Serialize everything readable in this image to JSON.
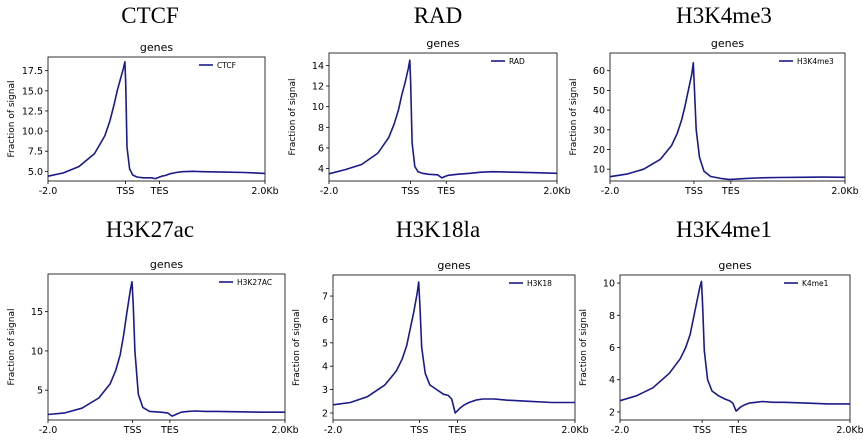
{
  "figure": {
    "line_color": "#1a1a8c",
    "axis_color": "#000000",
    "legend_line_color": "#1a1a8c"
  },
  "chart_data": [
    {
      "type": "line",
      "panel_title": "CTCF",
      "title": "genes",
      "ylabel": "Fraction of signal",
      "xlabel": "",
      "xtick_labels": [
        "-2.0",
        "TSS",
        "TES",
        "2.0Kb"
      ],
      "ytick_labels": [
        "5.0",
        "7.5",
        "10.0",
        "12.5",
        "15.0",
        "17.5"
      ],
      "yticks": [
        5,
        7.5,
        10,
        12.5,
        15,
        17.5
      ],
      "ylim": [
        3.8,
        19.2
      ],
      "legend": "CTCF",
      "legend_position": "top-right",
      "x": [
        0,
        15,
        30,
        45,
        55,
        60,
        64,
        67,
        70,
        73,
        74.4,
        75.2,
        76.5,
        79,
        82,
        86,
        92,
        100,
        104,
        107,
        110,
        114,
        118,
        124,
        130,
        140,
        150,
        170,
        190,
        210
      ],
      "y": [
        4.4,
        4.8,
        5.6,
        7.2,
        9.4,
        11.3,
        13.3,
        15.0,
        16.4,
        17.8,
        18.6,
        16.0,
        8.0,
        5.3,
        4.55,
        4.3,
        4.2,
        4.2,
        4.1,
        4.25,
        4.4,
        4.5,
        4.7,
        4.85,
        4.95,
        5.0,
        4.95,
        4.9,
        4.85,
        4.75
      ]
    },
    {
      "type": "line",
      "panel_title": "RAD",
      "title": "genes",
      "ylabel": "Fraction of signal",
      "xlabel": "",
      "xtick_labels": [
        "-2.0",
        "TSS",
        "TES",
        "2.0Kb"
      ],
      "ytick_labels": [
        "4",
        "6",
        "8",
        "10",
        "12",
        "14"
      ],
      "yticks": [
        4,
        6,
        8,
        10,
        12,
        14
      ],
      "ylim": [
        2.8,
        15.2
      ],
      "legend": "RAD",
      "legend_position": "top-right",
      "x": [
        0,
        15,
        30,
        45,
        55,
        60,
        64,
        67,
        70,
        73,
        74.4,
        75.2,
        76.5,
        79,
        82,
        86,
        92,
        100,
        104,
        107,
        110,
        114,
        118,
        124,
        130,
        140,
        150,
        170,
        190,
        210
      ],
      "y": [
        3.5,
        3.9,
        4.4,
        5.5,
        7.0,
        8.3,
        9.7,
        11.1,
        12.3,
        13.7,
        14.5,
        12.5,
        6.5,
        4.2,
        3.7,
        3.55,
        3.45,
        3.4,
        3.1,
        3.25,
        3.35,
        3.4,
        3.45,
        3.5,
        3.55,
        3.65,
        3.7,
        3.65,
        3.6,
        3.55
      ]
    },
    {
      "type": "line",
      "panel_title": "H3K4me3",
      "title": "genes",
      "ylabel": "Fraction of signal",
      "xlabel": "",
      "xtick_labels": [
        "-2.0",
        "TSS",
        "TES",
        "2.0Kb"
      ],
      "ytick_labels": [
        "10",
        "20",
        "30",
        "40",
        "50",
        "60"
      ],
      "yticks": [
        10,
        20,
        30,
        40,
        50,
        60
      ],
      "ylim": [
        4,
        69
      ],
      "legend": "H3K4me3",
      "legend_position": "top-right",
      "x": [
        0,
        15,
        30,
        45,
        55,
        60,
        64,
        67,
        70,
        73,
        74.4,
        75.5,
        77,
        80,
        84,
        90,
        100,
        106,
        112,
        120,
        130,
        140,
        150,
        170,
        190,
        210
      ],
      "y": [
        6.2,
        7.5,
        10.0,
        15.0,
        22.0,
        28.0,
        35.0,
        42.0,
        50.0,
        58.0,
        64.0,
        50.0,
        30.0,
        16.0,
        9.0,
        6.3,
        5.2,
        4.8,
        4.9,
        5.2,
        5.5,
        5.7,
        5.8,
        5.9,
        6.0,
        5.9
      ]
    },
    {
      "type": "line",
      "panel_title": "H3K27ac",
      "title": "genes",
      "ylabel": "Fraction of signal",
      "xlabel": "",
      "xtick_labels": [
        "-2.0",
        "TSS",
        "TES",
        "2.0Kb"
      ],
      "ytick_labels": [
        "5",
        "10",
        "15"
      ],
      "yticks": [
        5,
        10,
        15
      ],
      "ylim": [
        1.2,
        19.8
      ],
      "legend": "H3K27AC",
      "legend_position": "top-right",
      "x": [
        0,
        15,
        30,
        45,
        55,
        60,
        64,
        67,
        70,
        73,
        74.4,
        75.5,
        77,
        80,
        84,
        90,
        100,
        106,
        110,
        114,
        118,
        124,
        130,
        140,
        150,
        170,
        190,
        210
      ],
      "y": [
        1.9,
        2.1,
        2.7,
        4.0,
        5.8,
        7.5,
        9.5,
        12.0,
        15.0,
        17.8,
        18.8,
        16.0,
        10.0,
        4.5,
        2.8,
        2.3,
        2.2,
        2.1,
        1.7,
        1.95,
        2.2,
        2.3,
        2.35,
        2.3,
        2.3,
        2.25,
        2.2,
        2.2
      ]
    },
    {
      "type": "line",
      "panel_title": "H3K18la",
      "title": "genes",
      "ylabel": "Fraction of signal",
      "xlabel": "",
      "xtick_labels": [
        "-2.0",
        "TSS",
        "TES",
        "2.0Kb"
      ],
      "ytick_labels": [
        "2",
        "3",
        "4",
        "5",
        "6",
        "7"
      ],
      "yticks": [
        2,
        3,
        4,
        5,
        6,
        7
      ],
      "ylim": [
        1.7,
        7.9
      ],
      "legend": "H3K18",
      "legend_position": "top-right",
      "x": [
        0,
        15,
        30,
        45,
        55,
        60,
        64,
        67,
        70,
        73,
        74.4,
        75.5,
        77,
        80,
        84,
        90,
        96,
        100,
        103,
        106,
        110,
        114,
        118,
        124,
        130,
        140,
        150,
        170,
        190,
        210
      ],
      "y": [
        2.35,
        2.45,
        2.7,
        3.2,
        3.8,
        4.3,
        4.9,
        5.6,
        6.3,
        7.1,
        7.6,
        6.5,
        4.8,
        3.7,
        3.2,
        3.0,
        2.8,
        2.75,
        2.6,
        2.0,
        2.2,
        2.35,
        2.45,
        2.55,
        2.6,
        2.6,
        2.55,
        2.5,
        2.45,
        2.45
      ]
    },
    {
      "type": "line",
      "panel_title": "H3K4me1",
      "title": "genes",
      "ylabel": "Fraction of signal",
      "xlabel": "",
      "xtick_labels": [
        "-2.0",
        "TSS",
        "TES",
        "2.0Kb"
      ],
      "ytick_labels": [
        "2",
        "4",
        "6",
        "8",
        "10"
      ],
      "yticks": [
        2,
        4,
        6,
        8,
        10
      ],
      "ylim": [
        1.5,
        10.5
      ],
      "legend": "K4me1",
      "legend_position": "top-right",
      "x": [
        0,
        15,
        30,
        45,
        55,
        60,
        64,
        67,
        70,
        73,
        74.4,
        75.5,
        77,
        80,
        84,
        90,
        96,
        100,
        103,
        106,
        110,
        114,
        118,
        124,
        130,
        140,
        150,
        170,
        190,
        210
      ],
      "y": [
        2.7,
        3.0,
        3.5,
        4.4,
        5.3,
        6.0,
        6.8,
        7.8,
        8.8,
        9.8,
        10.1,
        8.5,
        5.8,
        4.0,
        3.3,
        3.0,
        2.8,
        2.7,
        2.55,
        2.05,
        2.3,
        2.45,
        2.55,
        2.6,
        2.65,
        2.6,
        2.6,
        2.55,
        2.5,
        2.5
      ]
    }
  ]
}
